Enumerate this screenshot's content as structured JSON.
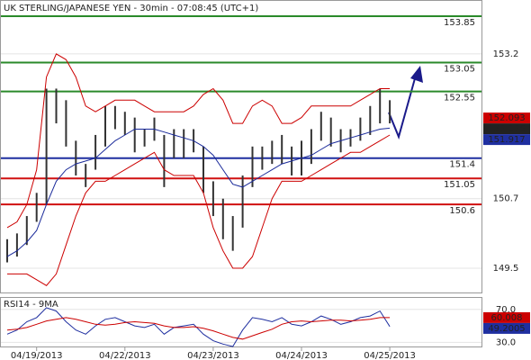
{
  "chart_data": [
    {
      "type": "ohlc",
      "title": "UK STERLING/JAPANESE YEN - 30min - 07:08:45 (UTC+1)",
      "categories": [
        null,
        null,
        null,
        "04/19/2013",
        null,
        null,
        null,
        null,
        null,
        null,
        null,
        null,
        "04/22/2013",
        null,
        null,
        null,
        null,
        null,
        null,
        null,
        null,
        "04/23/2013",
        null,
        null,
        null,
        null,
        null,
        null,
        null,
        null,
        "04/24/2013",
        null,
        null,
        null,
        null,
        null,
        null,
        null,
        null,
        "04/25/2013"
      ],
      "high": [
        150.0,
        150.1,
        150.4,
        150.8,
        152.6,
        152.6,
        152.4,
        151.7,
        151.3,
        151.8,
        152.3,
        152.3,
        152.2,
        152.1,
        151.9,
        152.1,
        151.8,
        151.9,
        151.9,
        151.9,
        151.6,
        151.0,
        150.7,
        150.4,
        151.1,
        151.6,
        151.6,
        151.7,
        151.8,
        151.6,
        151.7,
        151.9,
        152.2,
        152.1,
        151.9,
        151.9,
        152.1,
        152.3,
        152.6,
        152.4
      ],
      "low": [
        149.6,
        149.7,
        149.9,
        150.3,
        150.6,
        152.0,
        151.6,
        151.1,
        150.9,
        151.2,
        151.6,
        151.9,
        151.8,
        151.5,
        151.6,
        151.7,
        150.9,
        151.4,
        151.4,
        151.5,
        150.8,
        150.4,
        150.0,
        149.8,
        150.2,
        150.9,
        151.2,
        151.3,
        151.3,
        151.1,
        151.1,
        151.3,
        151.7,
        151.6,
        151.5,
        151.6,
        151.7,
        151.8,
        152.0,
        152.0
      ],
      "bar_color": "#333333",
      "series": [
        {
          "color": "#1a2a9a",
          "values": [
            149.7,
            149.8,
            149.95,
            150.15,
            150.6,
            151.0,
            151.2,
            151.3,
            151.35,
            151.4,
            151.55,
            151.7,
            151.8,
            151.9,
            151.9,
            151.9,
            151.85,
            151.8,
            151.75,
            151.7,
            151.6,
            151.45,
            151.2,
            150.95,
            150.9,
            151.0,
            151.1,
            151.2,
            151.3,
            151.35,
            151.4,
            151.45,
            151.55,
            151.65,
            151.7,
            151.75,
            151.8,
            151.85,
            151.9,
            151.917
          ]
        },
        {
          "color": "#cc0000",
          "values": [
            150.2,
            150.3,
            150.6,
            151.2,
            152.8,
            153.2,
            153.1,
            152.8,
            152.3,
            152.2,
            152.3,
            152.4,
            152.4,
            152.4,
            152.3,
            152.2,
            152.2,
            152.2,
            152.2,
            152.3,
            152.5,
            152.6,
            152.4,
            152.0,
            152.0,
            152.3,
            152.4,
            152.3,
            152.0,
            152.0,
            152.1,
            152.3,
            152.3,
            152.3,
            152.3,
            152.3,
            152.4,
            152.5,
            152.6,
            152.6
          ]
        },
        {
          "color": "#cc0000",
          "values": [
            149.4,
            149.4,
            149.4,
            149.3,
            149.2,
            149.4,
            149.9,
            150.4,
            150.8,
            151.0,
            151.0,
            151.1,
            151.2,
            151.3,
            151.4,
            151.5,
            151.2,
            151.1,
            151.1,
            151.1,
            150.8,
            150.2,
            149.8,
            149.5,
            149.5,
            149.7,
            150.2,
            150.7,
            151.0,
            151.0,
            151.0,
            151.1,
            151.2,
            151.3,
            151.4,
            151.5,
            151.5,
            151.6,
            151.7,
            151.8
          ]
        }
      ],
      "levels": [
        {
          "value": 153.85,
          "color": "#2a8a2a"
        },
        {
          "value": 153.05,
          "color": "#2a8a2a"
        },
        {
          "value": 152.55,
          "color": "#2a8a2a"
        },
        {
          "value": 151.4,
          "color": "#1f2fa0"
        },
        {
          "value": 151.05,
          "color": "#d01010"
        },
        {
          "value": 150.6,
          "color": "#d01010"
        }
      ],
      "markers": [
        {
          "value": 152.093,
          "color": "#cc0000"
        },
        {
          "value": 152.026,
          "color": "#222222"
        },
        {
          "value": 151.917,
          "color": "#1f2fa0"
        }
      ],
      "ylim": [
        149.08,
        154.13
      ],
      "yticks": [
        149.5,
        150.7,
        153.2
      ],
      "grid": true
    },
    {
      "type": "line",
      "title": "RSI14 - 9MA",
      "series": [
        {
          "color": "#1f2fa0",
          "values": [
            40,
            45,
            55,
            60,
            72,
            68,
            55,
            45,
            40,
            50,
            58,
            60,
            55,
            50,
            48,
            52,
            40,
            48,
            50,
            52,
            40,
            32,
            28,
            25,
            45,
            60,
            58,
            55,
            60,
            52,
            50,
            55,
            62,
            58,
            52,
            55,
            60,
            62,
            68,
            49.2005
          ]
        },
        {
          "color": "#cc0000",
          "values": [
            45,
            46,
            48,
            52,
            56,
            58,
            60,
            58,
            55,
            52,
            51,
            52,
            54,
            55,
            54,
            53,
            50,
            48,
            48,
            49,
            47,
            44,
            40,
            36,
            34,
            38,
            42,
            46,
            52,
            55,
            56,
            55,
            56,
            57,
            57,
            56,
            57,
            58,
            60,
            60.008
          ]
        }
      ],
      "markers": [
        {
          "value": 60.008,
          "color": "#cc0000"
        },
        {
          "value": 49.2005,
          "color": "#1f2fa0"
        }
      ],
      "ylim": [
        25,
        85
      ],
      "yticks": [
        {
          "value": 70,
          "label": "70.0"
        },
        {
          "value": 30,
          "label": "30.0"
        }
      ],
      "grid": true
    }
  ]
}
